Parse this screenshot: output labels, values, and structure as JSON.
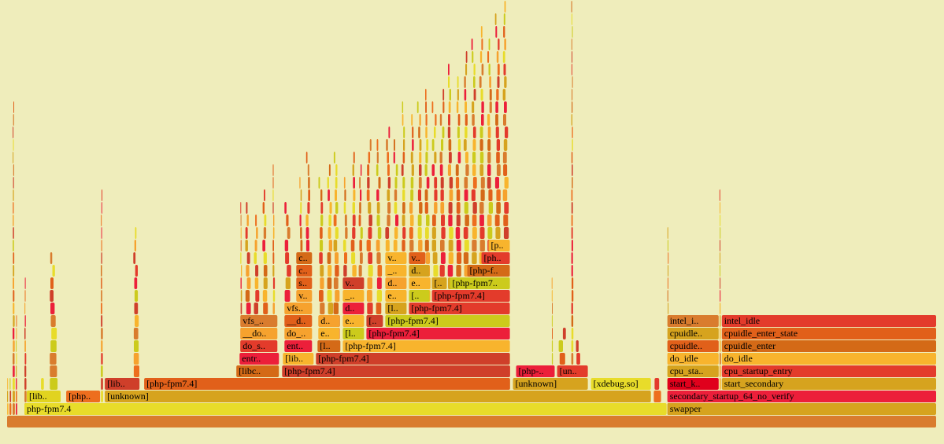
{
  "chart_data": {
    "type": "flamegraph",
    "title": "",
    "background": "#efedbb",
    "palette": [
      "#d97c2e",
      "#e8dc2a",
      "#d6a31e",
      "#e1601a",
      "#cf3f2a",
      "#ec1f3a",
      "#f8b42d",
      "#d46a17",
      "#e33b2b",
      "#cccb1c",
      "#ed6e1e",
      "#f6a22e"
    ],
    "total_samples": 1180,
    "frames": [
      {
        "label": "",
        "start": 0,
        "width": 1180,
        "depth": 0,
        "color": "#d97c2e"
      },
      {
        "label": "php-fpm7.4",
        "start": 22,
        "width": 816,
        "depth": 1,
        "color": "#e8dc2a"
      },
      {
        "label": "swapper",
        "start": 838,
        "width": 342,
        "depth": 1,
        "color": "#d6a31e"
      },
      {
        "label": "[lib..",
        "start": 25,
        "width": 44,
        "depth": 2,
        "color": "#e1d320"
      },
      {
        "label": "[php..",
        "start": 75,
        "width": 44,
        "depth": 2,
        "color": "#ed6e1e"
      },
      {
        "label": "[unknown]",
        "start": 124,
        "width": 694,
        "depth": 2,
        "color": "#d6a31e"
      },
      {
        "label": "secondary_startup_64_no_verify",
        "start": 838,
        "width": 342,
        "depth": 2,
        "color": "#ec1f3a"
      },
      {
        "label": "[lib..",
        "start": 124,
        "width": 45,
        "depth": 3,
        "color": "#cf3f2a"
      },
      {
        "label": "[php-fpm7.4]",
        "start": 174,
        "width": 465,
        "depth": 3,
        "color": "#e1601a"
      },
      {
        "label": "[unknown]",
        "start": 642,
        "width": 96,
        "depth": 3,
        "color": "#d6a31e"
      },
      {
        "label": "[xdebug.so]",
        "start": 741,
        "width": 77,
        "depth": 3,
        "color": "#e8dc2a"
      },
      {
        "label": "start_k..",
        "start": 838,
        "width": 66,
        "depth": 3,
        "color": "#e0001c"
      },
      {
        "label": "start_secondary",
        "start": 907,
        "width": 273,
        "depth": 3,
        "color": "#d6a31e"
      },
      {
        "label": "[libc..",
        "start": 291,
        "width": 55,
        "depth": 4,
        "color": "#d46a17"
      },
      {
        "label": "[php-fpm7.4]",
        "start": 349,
        "width": 290,
        "depth": 4,
        "color": "#cf3f2a"
      },
      {
        "label": "[php-..",
        "start": 646,
        "width": 50,
        "depth": 4,
        "color": "#ec1f3a"
      },
      {
        "label": "[un..",
        "start": 698,
        "width": 40,
        "depth": 4,
        "color": "#e33b2b"
      },
      {
        "label": "cpu_sta..",
        "start": 838,
        "width": 66,
        "depth": 4,
        "color": "#d6a31e"
      },
      {
        "label": "cpu_startup_entry",
        "start": 907,
        "width": 273,
        "depth": 4,
        "color": "#e33b2b"
      },
      {
        "label": "entr..",
        "start": 295,
        "width": 51,
        "depth": 5,
        "color": "#ec1f3a"
      },
      {
        "label": "[lib..",
        "start": 350,
        "width": 40,
        "depth": 5,
        "color": "#f8b42d"
      },
      {
        "label": "[php-fpm7.4]",
        "start": 392,
        "width": 247,
        "depth": 5,
        "color": "#cf3f2a"
      },
      {
        "label": "do_idle",
        "start": 838,
        "width": 66,
        "depth": 5,
        "color": "#f8b42d"
      },
      {
        "label": "do_idle",
        "start": 907,
        "width": 273,
        "depth": 5,
        "color": "#f8b42d"
      },
      {
        "label": "do_s..",
        "start": 296,
        "width": 48,
        "depth": 6,
        "color": "#e33b2b"
      },
      {
        "label": "ent..",
        "start": 352,
        "width": 36,
        "depth": 6,
        "color": "#ec1f3a"
      },
      {
        "label": "[l..",
        "start": 394,
        "width": 30,
        "depth": 6,
        "color": "#d46a17"
      },
      {
        "label": "[php-fpm7.4]",
        "start": 426,
        "width": 213,
        "depth": 6,
        "color": "#f8b42d"
      },
      {
        "label": "cpuidle..",
        "start": 838,
        "width": 66,
        "depth": 6,
        "color": "#e1601a"
      },
      {
        "label": "cpuidle_enter",
        "start": 907,
        "width": 273,
        "depth": 6,
        "color": "#d46a17"
      },
      {
        "label": "__do..",
        "start": 296,
        "width": 48,
        "depth": 7,
        "color": "#f6a22e"
      },
      {
        "label": "do_..",
        "start": 352,
        "width": 36,
        "depth": 7,
        "color": "#f6a22e"
      },
      {
        "label": "e..",
        "start": 395,
        "width": 28,
        "depth": 7,
        "color": "#f8b42d"
      },
      {
        "label": "[l..",
        "start": 426,
        "width": 28,
        "depth": 7,
        "color": "#cccb1c"
      },
      {
        "label": "[php-fpm7.4]",
        "start": 456,
        "width": 183,
        "depth": 7,
        "color": "#ec1f3a"
      },
      {
        "label": "cpuidle..",
        "start": 838,
        "width": 66,
        "depth": 7,
        "color": "#d6a31e"
      },
      {
        "label": "cpuidle_enter_state",
        "start": 907,
        "width": 273,
        "depth": 7,
        "color": "#e1601a"
      },
      {
        "label": "vfs_..",
        "start": 296,
        "width": 48,
        "depth": 8,
        "color": "#d97c2e"
      },
      {
        "label": "__d..",
        "start": 352,
        "width": 36,
        "depth": 8,
        "color": "#e1601a"
      },
      {
        "label": "d..",
        "start": 395,
        "width": 28,
        "depth": 8,
        "color": "#f6a22e"
      },
      {
        "label": "e..",
        "start": 426,
        "width": 28,
        "depth": 8,
        "color": "#f8b42d"
      },
      {
        "label": "[..",
        "start": 456,
        "width": 22,
        "depth": 8,
        "color": "#cf3f2a"
      },
      {
        "label": "[php-fpm7.4]",
        "start": 480,
        "width": 159,
        "depth": 8,
        "color": "#cccb1c"
      },
      {
        "label": "intel_i..",
        "start": 838,
        "width": 66,
        "depth": 8,
        "color": "#d97c2e"
      },
      {
        "label": "intel_idle",
        "start": 907,
        "width": 273,
        "depth": 8,
        "color": "#e33b2b"
      },
      {
        "label": "vfs..",
        "start": 352,
        "width": 36,
        "depth": 9,
        "color": "#f6a22e"
      },
      {
        "label": "d..",
        "start": 426,
        "width": 28,
        "depth": 9,
        "color": "#ec1f3a"
      },
      {
        "label": "[l..",
        "start": 480,
        "width": 28,
        "depth": 9,
        "color": "#d6a31e"
      },
      {
        "label": "[php-fpm7.4]",
        "start": 510,
        "width": 129,
        "depth": 9,
        "color": "#e33b2b"
      },
      {
        "label": "v..",
        "start": 367,
        "width": 21,
        "depth": 10,
        "color": "#f6a22e"
      },
      {
        "label": "_..",
        "start": 426,
        "width": 28,
        "depth": 10,
        "color": "#f8b42d"
      },
      {
        "label": "e..",
        "start": 480,
        "width": 28,
        "depth": 10,
        "color": "#f8b42d"
      },
      {
        "label": "[..",
        "start": 510,
        "width": 27,
        "depth": 10,
        "color": "#cccb1c"
      },
      {
        "label": "[php-fpm7.4]",
        "start": 539,
        "width": 100,
        "depth": 10,
        "color": "#e33b2b"
      },
      {
        "label": "s..",
        "start": 367,
        "width": 21,
        "depth": 11,
        "color": "#e1601a"
      },
      {
        "label": "v..",
        "start": 426,
        "width": 28,
        "depth": 11,
        "color": "#cf3f2a"
      },
      {
        "label": "d..",
        "start": 480,
        "width": 28,
        "depth": 11,
        "color": "#f6a22e"
      },
      {
        "label": "e..",
        "start": 510,
        "width": 27,
        "depth": 11,
        "color": "#f8b42d"
      },
      {
        "label": "[..",
        "start": 539,
        "width": 20,
        "depth": 11,
        "color": "#d6a31e"
      },
      {
        "label": "[php-fpm7..",
        "start": 562,
        "width": 77,
        "depth": 11,
        "color": "#cccb1c"
      },
      {
        "label": "c..",
        "start": 367,
        "width": 21,
        "depth": 12,
        "color": "#e1601a"
      },
      {
        "label": "_..",
        "start": 480,
        "width": 28,
        "depth": 12,
        "color": "#f8b42d"
      },
      {
        "label": "d..",
        "start": 510,
        "width": 27,
        "depth": 12,
        "color": "#d6a31e"
      },
      {
        "label": "[php-f..",
        "start": 584,
        "width": 55,
        "depth": 12,
        "color": "#d46a17"
      },
      {
        "label": "c..",
        "start": 367,
        "width": 21,
        "depth": 13,
        "color": "#d46a17"
      },
      {
        "label": "v..",
        "start": 480,
        "width": 28,
        "depth": 13,
        "color": "#f8b42d"
      },
      {
        "label": "v..",
        "start": 510,
        "width": 22,
        "depth": 13,
        "color": "#e1601a"
      },
      {
        "label": "[ph..",
        "start": 602,
        "width": 37,
        "depth": 13,
        "color": "#e33b2b"
      },
      {
        "label": "[p..",
        "start": 611,
        "width": 28,
        "depth": 14,
        "color": "#f8b42d"
      }
    ],
    "slivers": [
      {
        "start": 0,
        "width": 2,
        "max_depth": 3
      },
      {
        "start": 3,
        "width": 3,
        "max_depth": 3
      },
      {
        "start": 7,
        "width": 3,
        "max_depth": 25
      },
      {
        "start": 11,
        "width": 2,
        "max_depth": 8
      },
      {
        "start": 22,
        "width": 3,
        "max_depth": 11
      },
      {
        "start": 43,
        "width": 10,
        "max_depth": 3
      },
      {
        "start": 54,
        "width": 12,
        "max_depth": 13
      },
      {
        "start": 119,
        "width": 3,
        "max_depth": 18
      },
      {
        "start": 160,
        "width": 9,
        "max_depth": 15
      },
      {
        "start": 296,
        "width": 3,
        "max_depth": 17
      },
      {
        "start": 302,
        "width": 10,
        "max_depth": 17
      },
      {
        "start": 313,
        "width": 10,
        "max_depth": 16
      },
      {
        "start": 324,
        "width": 10,
        "max_depth": 18
      },
      {
        "start": 337,
        "width": 4,
        "max_depth": 20
      },
      {
        "start": 352,
        "width": 13,
        "max_depth": 17
      },
      {
        "start": 371,
        "width": 7,
        "max_depth": 19
      },
      {
        "start": 379,
        "width": 9,
        "max_depth": 21
      },
      {
        "start": 395,
        "width": 10,
        "max_depth": 19
      },
      {
        "start": 406,
        "width": 10,
        "max_depth": 20
      },
      {
        "start": 414,
        "width": 10,
        "max_depth": 21
      },
      {
        "start": 426,
        "width": 9,
        "max_depth": 19
      },
      {
        "start": 436,
        "width": 10,
        "max_depth": 21
      },
      {
        "start": 446,
        "width": 8,
        "max_depth": 20
      },
      {
        "start": 456,
        "width": 11,
        "max_depth": 22
      },
      {
        "start": 468,
        "width": 10,
        "max_depth": 22
      },
      {
        "start": 480,
        "width": 10,
        "max_depth": 23
      },
      {
        "start": 490,
        "width": 10,
        "max_depth": 22
      },
      {
        "start": 500,
        "width": 8,
        "max_depth": 25
      },
      {
        "start": 510,
        "width": 10,
        "max_depth": 24
      },
      {
        "start": 520,
        "width": 10,
        "max_depth": 25
      },
      {
        "start": 530,
        "width": 9,
        "max_depth": 26
      },
      {
        "start": 539,
        "width": 10,
        "max_depth": 25
      },
      {
        "start": 549,
        "width": 10,
        "max_depth": 26
      },
      {
        "start": 559,
        "width": 10,
        "max_depth": 28
      },
      {
        "start": 569,
        "width": 10,
        "max_depth": 27
      },
      {
        "start": 579,
        "width": 10,
        "max_depth": 29
      },
      {
        "start": 589,
        "width": 10,
        "max_depth": 30
      },
      {
        "start": 599,
        "width": 10,
        "max_depth": 31
      },
      {
        "start": 609,
        "width": 10,
        "max_depth": 30
      },
      {
        "start": 619,
        "width": 10,
        "max_depth": 32
      },
      {
        "start": 629,
        "width": 10,
        "max_depth": 33
      },
      {
        "start": 691,
        "width": 2,
        "max_depth": 11
      },
      {
        "start": 700,
        "width": 15,
        "max_depth": 7
      },
      {
        "start": 716,
        "width": 3,
        "max_depth": 34
      },
      {
        "start": 719,
        "width": 12,
        "max_depth": 6
      },
      {
        "start": 818,
        "width": 16,
        "max_depth": 3
      },
      {
        "start": 838,
        "width": 2,
        "max_depth": 15
      },
      {
        "start": 904,
        "width": 2,
        "max_depth": 18
      }
    ]
  }
}
